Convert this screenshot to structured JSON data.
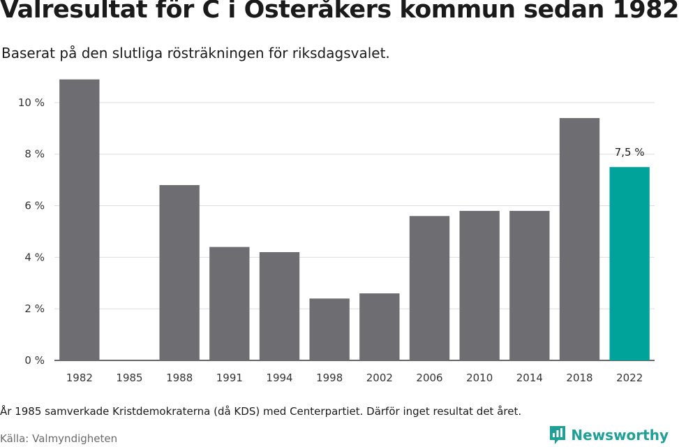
{
  "title": "Valresultat för C i Österåkers kommun sedan 1982",
  "subtitle": "Baserat på den slutliga rösträkningen för riksdagsvalet.",
  "footnote": "År 1985 samverkade Kristdemokraterna (då KDS) med Centerpartiet. Därför inget resultat det året.",
  "source": "Källa: Valmyndigheten",
  "brand": {
    "name": "Newsworthy",
    "icon": "newsworthy-logo-icon",
    "color": "#1f9f95"
  },
  "colors": {
    "bar": "#6e6d72",
    "highlight": "#00a39a",
    "grid": "#dddddd",
    "axis": "#333333"
  },
  "chart_data": {
    "type": "bar",
    "categories": [
      "1982",
      "1985",
      "1988",
      "1991",
      "1994",
      "1998",
      "2002",
      "2006",
      "2010",
      "2014",
      "2018",
      "2022"
    ],
    "values": [
      10.9,
      null,
      6.8,
      4.4,
      4.2,
      2.4,
      2.6,
      5.6,
      5.8,
      5.8,
      9.4,
      7.5
    ],
    "highlight": "2022",
    "data_labels": [
      {
        "category": "2022",
        "text": "7,5 %"
      }
    ],
    "yticks": [
      {
        "value": 0,
        "label": "0 %"
      },
      {
        "value": 2,
        "label": "2 %"
      },
      {
        "value": 4,
        "label": "4 %"
      },
      {
        "value": 6,
        "label": "6 %"
      },
      {
        "value": 8,
        "label": "8 %"
      },
      {
        "value": 10,
        "label": "10 %"
      }
    ],
    "ylim": [
      0,
      11
    ],
    "grid": true,
    "legend": "none"
  }
}
